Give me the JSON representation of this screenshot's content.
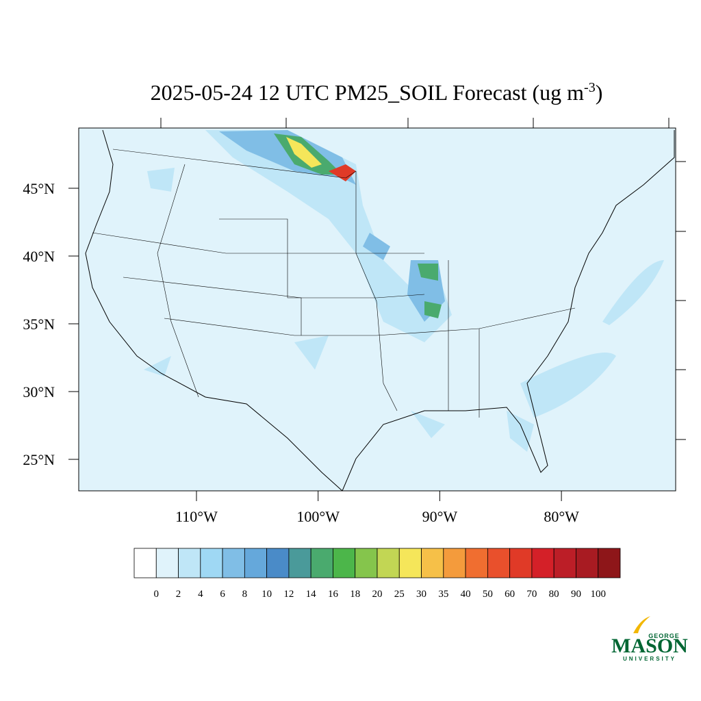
{
  "title": {
    "main": "2025-05-24 12 UTC PM25_SOIL Forecast (ug m",
    "superscript": "-3",
    "close": ")"
  },
  "lat_ticks": [
    {
      "value": 45,
      "label": "45°N"
    },
    {
      "value": 40,
      "label": "40°N"
    },
    {
      "value": 35,
      "label": "35°N"
    },
    {
      "value": 30,
      "label": "30°N"
    },
    {
      "value": 25,
      "label": "25°N"
    }
  ],
  "lon_ticks": [
    {
      "value": -110,
      "label": "110°W"
    },
    {
      "value": -100,
      "label": "100°W"
    },
    {
      "value": -90,
      "label": "90°W"
    },
    {
      "value": -80,
      "label": "80°W"
    }
  ],
  "colorbar": {
    "levels": [
      0,
      2,
      4,
      6,
      8,
      10,
      12,
      14,
      16,
      18,
      20,
      25,
      30,
      35,
      40,
      50,
      60,
      70,
      80,
      90,
      100
    ],
    "colors": [
      "#ffffff",
      "#e0f3fb",
      "#bfe6f7",
      "#9fd8f4",
      "#80bee6",
      "#65a8db",
      "#4a8bc8",
      "#4a9a9a",
      "#4aaa6e",
      "#4cb64a",
      "#85c54c",
      "#c2d654",
      "#f5e65a",
      "#f6c048",
      "#f49b3c",
      "#f06e30",
      "#e9502c",
      "#e03a27",
      "#d42028",
      "#bc1e27",
      "#a81b22",
      "#8e1619"
    ]
  },
  "logo": {
    "line1": "GEORGE",
    "line2": "MASON",
    "line3": "UNIVERSITY"
  }
}
